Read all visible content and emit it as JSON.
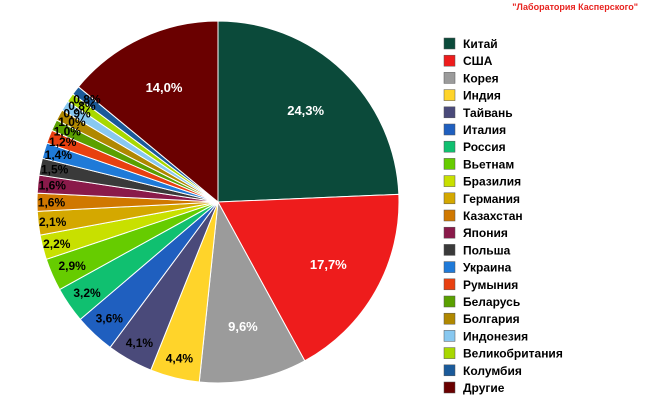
{
  "watermark": "\"Лаборатория Касперского\"",
  "chart_data": {
    "type": "pie",
    "title": "",
    "legend_position": "right",
    "categories": [
      "Китай",
      "США",
      "Корея",
      "Индия",
      "Тайвань",
      "Италия",
      "Россия",
      "Вьетнам",
      "Бразилия",
      "Германия",
      "Казахстан",
      "Япония",
      "Польша",
      "Украина",
      "Румыния",
      "Беларусь",
      "Болгария",
      "Индонезия",
      "Великобритания",
      "Колумбия",
      "Другие"
    ],
    "values": [
      24.3,
      17.7,
      9.6,
      4.4,
      4.1,
      3.6,
      3.2,
      2.9,
      2.2,
      2.1,
      1.6,
      1.6,
      1.5,
      1.4,
      1.2,
      1.0,
      1.0,
      0.9,
      0.8,
      0.8,
      14.0
    ],
    "labels": [
      "24,3%",
      "17,7%",
      "9,6%",
      "4,4%",
      "4,1%",
      "3,6%",
      "3,2%",
      "2,9%",
      "2,2%",
      "2,1%",
      "1,6%",
      "1,6%",
      "1,5%",
      "1,4%",
      "1,2%",
      "1,0%",
      "1,0%",
      "0,9%",
      "0,8%",
      "0,8%",
      "14,0%"
    ],
    "colors": [
      "#0b4a3a",
      "#ee1c1c",
      "#9b9b9b",
      "#ffd42a",
      "#4a4a7a",
      "#1f5fbf",
      "#10c070",
      "#66cc00",
      "#c8e000",
      "#d4a800",
      "#d07800",
      "#8a1a4a",
      "#3a3a3a",
      "#1f7ad8",
      "#e84010",
      "#5aa000",
      "#b08800",
      "#88c8f0",
      "#a8d800",
      "#1a5a9a",
      "#6a0000"
    ]
  }
}
